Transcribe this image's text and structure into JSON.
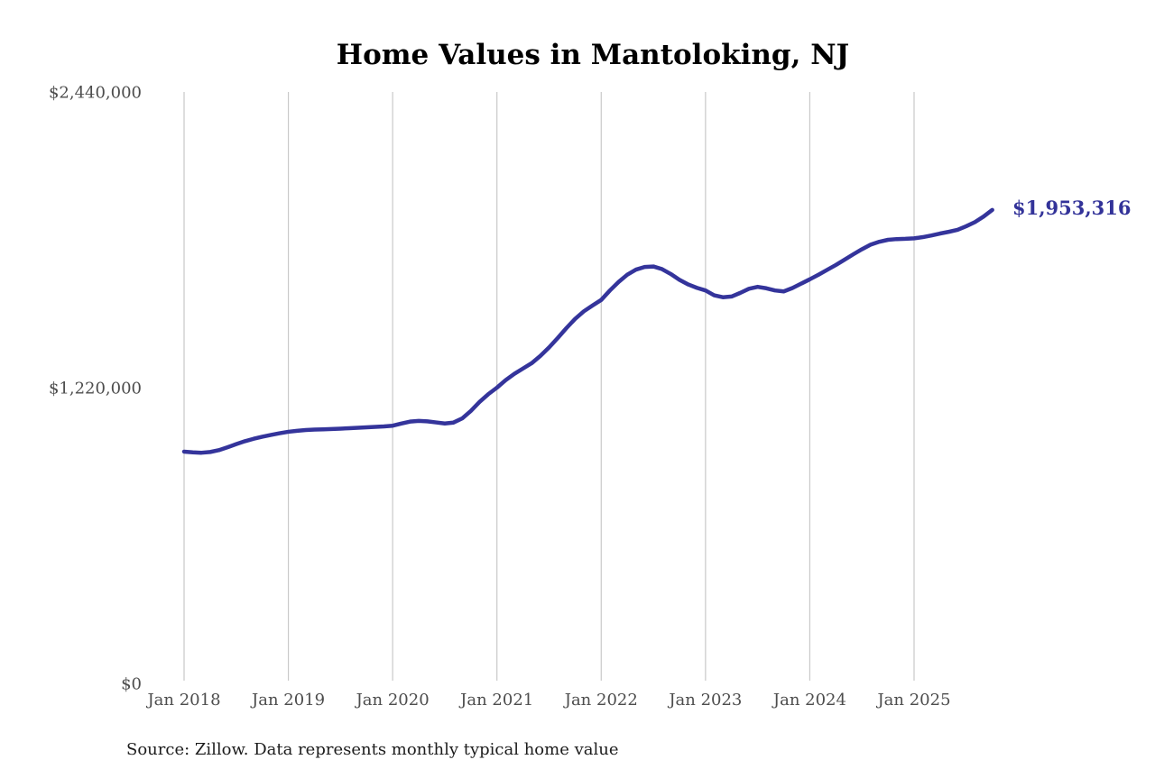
{
  "chart_data": {
    "type": "line",
    "title": "Home Values in Mantoloking, NJ",
    "source_note": "Source: Zillow. Data represents monthly typical home value",
    "end_label": "$1,953,316",
    "end_value": 1953316,
    "ylim": [
      0,
      2440000
    ],
    "grid": "vertical-only",
    "legend": "none",
    "colors": {
      "line": "#34349b",
      "end_label": "#333399",
      "grid": "#c9c9c9",
      "tick_label": "#4d4d4d",
      "title": "#000000",
      "background": "#ffffff"
    },
    "y_ticks": [
      {
        "label": "$0",
        "value": 0
      },
      {
        "label": "$1,220,000",
        "value": 1220000
      },
      {
        "label": "$2,440,000",
        "value": 2440000
      }
    ],
    "x_ticks": [
      {
        "label": "Jan 2018",
        "month_index": 0
      },
      {
        "label": "Jan 2019",
        "month_index": 12
      },
      {
        "label": "Jan 2020",
        "month_index": 24
      },
      {
        "label": "Jan 2021",
        "month_index": 36
      },
      {
        "label": "Jan 2022",
        "month_index": 48
      },
      {
        "label": "Jan 2023",
        "month_index": 60
      },
      {
        "label": "Jan 2024",
        "month_index": 72
      },
      {
        "label": "Jan 2025",
        "month_index": 84
      }
    ],
    "series": [
      {
        "name": "Monthly typical home value",
        "x_start": "Jan 2018",
        "x_interval": "month",
        "x_end": "Oct 2025",
        "values": [
          956000,
          953000,
          951500,
          954500,
          962000,
          974000,
          987000,
          999000,
          1009000,
          1017500,
          1025000,
          1032000,
          1038000,
          1042000,
          1045000,
          1047000,
          1048000,
          1049500,
          1051000,
          1052500,
          1054500,
          1056500,
          1058000,
          1060000,
          1063000,
          1072000,
          1080000,
          1083000,
          1081000,
          1076500,
          1072000,
          1076000,
          1093000,
          1124000,
          1161000,
          1193000,
          1220000,
          1251000,
          1277000,
          1299000,
          1321000,
          1351000,
          1386000,
          1425000,
          1466000,
          1504000,
          1535000,
          1559000,
          1582000,
          1621000,
          1656000,
          1686000,
          1707000,
          1718000,
          1720000,
          1709000,
          1689000,
          1665000,
          1646000,
          1632000,
          1621000,
          1601000,
          1593000,
          1596000,
          1611000,
          1628000,
          1636000,
          1630000,
          1621000,
          1617000,
          1631000,
          1649000,
          1667000,
          1686000,
          1706000,
          1726000,
          1748000,
          1770000,
          1791000,
          1810000,
          1822000,
          1830000,
          1833000,
          1834000,
          1836000,
          1841000,
          1848000,
          1856000,
          1863000,
          1871000,
          1886000,
          1903000,
          1926000,
          1953316
        ]
      }
    ]
  }
}
